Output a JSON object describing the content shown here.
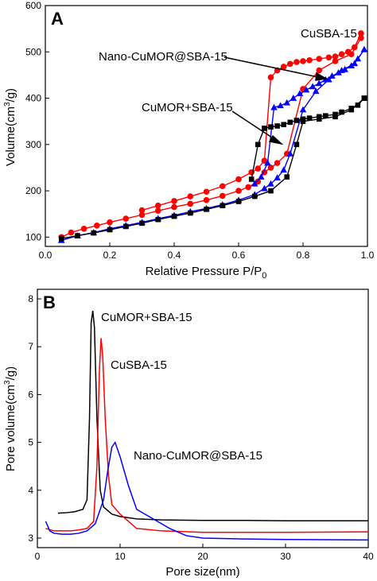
{
  "chart_data": [
    {
      "type": "line",
      "panel_label": "A",
      "xlabel_main": "Relative Pressure P/P",
      "xlabel_sub": "0",
      "ylabel_main": "Volume(cm",
      "ylabel_sup": "3",
      "ylabel_end": "/g)",
      "xlim": [
        0.0,
        1.0
      ],
      "ylim": [
        80,
        600
      ],
      "x_ticks": [
        "0.0",
        "0.2",
        "0.4",
        "0.6",
        "0.8",
        "1.0"
      ],
      "x_tick_values": [
        0.0,
        0.2,
        0.4,
        0.6,
        0.8,
        1.0
      ],
      "y_ticks": [
        "100",
        "200",
        "300",
        "400",
        "500",
        "600"
      ],
      "y_tick_values": [
        100,
        200,
        300,
        400,
        500,
        600
      ],
      "annotations": [
        "CuSBA-15",
        "Nano-CuMOR@SBA-15",
        "CuMOR+SBA-15"
      ],
      "series": [
        {
          "name": "CuSBA-15",
          "color": "#ff0000",
          "marker": "circle",
          "adsorption": {
            "x": [
              0.05,
              0.08,
              0.12,
              0.16,
              0.2,
              0.25,
              0.3,
              0.35,
              0.4,
              0.45,
              0.5,
              0.55,
              0.6,
              0.63,
              0.66,
              0.68,
              0.7,
              0.72,
              0.75,
              0.8,
              0.85,
              0.9,
              0.95,
              0.98
            ],
            "y": [
              100,
              110,
              118,
              125,
              132,
              140,
              148,
              157,
              165,
              172,
              180,
              189,
              200,
              208,
              220,
              240,
              250,
              260,
              280,
              420,
              460,
              480,
              495,
              530
            ]
          },
          "desorption": {
            "x": [
              0.98,
              0.96,
              0.94,
              0.92,
              0.9,
              0.88,
              0.85,
              0.82,
              0.8,
              0.78,
              0.76,
              0.74,
              0.72,
              0.7,
              0.68,
              0.66,
              0.64,
              0.6,
              0.55,
              0.5,
              0.45,
              0.4,
              0.35,
              0.3
            ],
            "y": [
              540,
              510,
              500,
              495,
              490,
              488,
              485,
              482,
              480,
              478,
              474,
              468,
              460,
              445,
              265,
              248,
              240,
              225,
              210,
              198,
              188,
              178,
              168,
              158
            ]
          }
        },
        {
          "name": "Nano-CuMOR@SBA-15",
          "color": "#0000ff",
          "marker": "triangle",
          "adsorption": {
            "x": [
              0.05,
              0.1,
              0.15,
              0.2,
              0.25,
              0.3,
              0.35,
              0.4,
              0.45,
              0.5,
              0.55,
              0.6,
              0.65,
              0.68,
              0.7,
              0.72,
              0.74,
              0.76,
              0.8,
              0.84,
              0.88,
              0.92,
              0.96,
              0.99
            ],
            "y": [
              93,
              103,
              110,
              118,
              125,
              132,
              140,
              147,
              155,
              162,
              170,
              180,
              192,
              205,
              215,
              228,
              245,
              280,
              375,
              415,
              440,
              460,
              475,
              505
            ]
          },
          "desorption": {
            "x": [
              0.99,
              0.97,
              0.95,
              0.93,
              0.91,
              0.89,
              0.87,
              0.85,
              0.83,
              0.81,
              0.79,
              0.77,
              0.75,
              0.73,
              0.71,
              0.69,
              0.67,
              0.65
            ],
            "y": [
              505,
              485,
              470,
              462,
              455,
              448,
              440,
              432,
              425,
              418,
              410,
              400,
              390,
              384,
              380,
              260,
              230,
              215
            ]
          }
        },
        {
          "name": "CuMOR+SBA-15",
          "color": "#000000",
          "marker": "square",
          "adsorption": {
            "x": [
              0.05,
              0.1,
              0.15,
              0.2,
              0.25,
              0.3,
              0.35,
              0.4,
              0.45,
              0.5,
              0.55,
              0.6,
              0.65,
              0.7,
              0.75,
              0.78,
              0.8,
              0.85,
              0.9,
              0.95,
              0.99
            ],
            "y": [
              97,
              103,
              109,
              116,
              123,
              130,
              138,
              145,
              152,
              160,
              168,
              177,
              188,
              200,
              230,
              300,
              350,
              355,
              360,
              375,
              400
            ]
          },
          "desorption": {
            "x": [
              0.99,
              0.97,
              0.95,
              0.92,
              0.9,
              0.87,
              0.85,
              0.82,
              0.8,
              0.78,
              0.76,
              0.74,
              0.72,
              0.7,
              0.68,
              0.66,
              0.64
            ],
            "y": [
              400,
              385,
              378,
              370,
              365,
              362,
              360,
              357,
              355,
              352,
              348,
              343,
              340,
              338,
              335,
              300,
              225
            ]
          }
        }
      ]
    },
    {
      "type": "line",
      "panel_label": "B",
      "xlabel": "Pore size(nm)",
      "ylabel_main": "Pore volume(cm",
      "ylabel_sup": "3",
      "ylabel_end": "/g)",
      "xlim": [
        0,
        40
      ],
      "ylim": [
        2.8,
        8.2
      ],
      "x_ticks": [
        "0",
        "10",
        "20",
        "30",
        "40"
      ],
      "x_tick_values": [
        0,
        10,
        20,
        30,
        40
      ],
      "y_ticks": [
        "3",
        "4",
        "5",
        "6",
        "7",
        "8"
      ],
      "y_tick_values": [
        3,
        4,
        5,
        6,
        7,
        8
      ],
      "annotations": [
        "CuMOR+SBA-15",
        "CuSBA-15",
        "Nano-CuMOR@SBA-15"
      ],
      "series": [
        {
          "name": "CuMOR+SBA-15",
          "color": "#000000",
          "x": [
            2.5,
            3.5,
            4.5,
            5.5,
            6.0,
            6.3,
            6.5,
            6.7,
            6.9,
            7.2,
            7.6,
            8.0,
            9.0,
            10.0,
            12.0,
            15.0,
            20.0,
            25.0,
            30.0,
            35.0,
            40.0
          ],
          "y": [
            3.52,
            3.53,
            3.55,
            3.6,
            3.8,
            5.5,
            7.5,
            7.75,
            7.4,
            5.5,
            4.0,
            3.65,
            3.5,
            3.45,
            3.4,
            3.38,
            3.37,
            3.37,
            3.36,
            3.36,
            3.36
          ]
        },
        {
          "name": "CuSBA-15",
          "color": "#ff0000",
          "x": [
            1.0,
            2.0,
            3.0,
            4.0,
            5.0,
            6.0,
            6.8,
            7.2,
            7.5,
            7.7,
            7.9,
            8.2,
            8.6,
            9.0,
            10.0,
            12.0,
            15.0,
            20.0,
            30.0,
            40.0
          ],
          "y": [
            3.2,
            3.15,
            3.15,
            3.15,
            3.17,
            3.2,
            3.35,
            4.5,
            6.5,
            7.18,
            6.8,
            5.5,
            4.3,
            3.7,
            3.5,
            3.2,
            3.15,
            3.12,
            3.12,
            3.13
          ]
        },
        {
          "name": "Nano-CuMOR@SBA-15",
          "color": "#0000ff",
          "x": [
            1.0,
            1.5,
            2.0,
            3.0,
            4.0,
            5.0,
            6.0,
            7.0,
            8.0,
            8.5,
            9.0,
            9.4,
            10.0,
            11.0,
            12.0,
            14.0,
            16.0,
            18.0,
            20.0,
            25.0,
            30.0,
            40.0
          ],
          "y": [
            3.35,
            3.15,
            3.1,
            3.08,
            3.08,
            3.1,
            3.15,
            3.3,
            3.8,
            4.4,
            4.9,
            5.0,
            4.7,
            4.1,
            3.6,
            3.4,
            3.2,
            3.05,
            3.0,
            2.98,
            2.97,
            2.96
          ]
        }
      ]
    }
  ]
}
